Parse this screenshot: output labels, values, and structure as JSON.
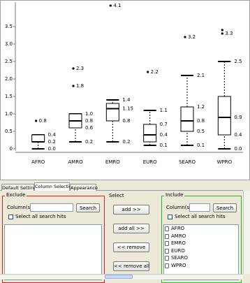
{
  "chart_data": {
    "type": "box",
    "categories": [
      "AFRO",
      "AMRO",
      "EMRO",
      "EURO",
      "SEARO",
      "WPRO"
    ],
    "ylim": [
      -0.05,
      4.2
    ],
    "yticks": [
      0,
      0.5,
      {
        "value": 1,
        "label": "1.0"
      },
      1.5,
      {
        "value": 2,
        "label": "2.0"
      },
      2.5,
      {
        "value": 3,
        "label": "3.0"
      },
      3.5
    ],
    "color": "#000000",
    "boxes": [
      {
        "min": 0,
        "q1": 0.2,
        "median": 0.2,
        "q3": 0.4,
        "max": 0.4,
        "outliers": [
          0.8
        ],
        "value_labels": [
          {
            "value": 0.8,
            "label": "0.8"
          },
          {
            "value": 0.4,
            "label": "0.4"
          },
          {
            "value": 0.2,
            "label": "0.2"
          },
          {
            "value": 0,
            "label": "0.0"
          }
        ]
      },
      {
        "min": 0.2,
        "q1": 0.6,
        "median": 0.8,
        "q3": 1,
        "max": 1,
        "outliers": [
          1.8,
          2.3
        ],
        "value_labels": [
          {
            "value": 2.3,
            "label": "2.3"
          },
          {
            "value": 1.8,
            "label": "1.8"
          },
          {
            "value": 1,
            "label": "1.0"
          },
          {
            "value": 0.8,
            "label": "0.8"
          },
          {
            "value": 0.6,
            "label": "0.6"
          },
          {
            "value": 0.2,
            "label": "0.2"
          }
        ]
      },
      {
        "min": 0.2,
        "q1": 0.8,
        "median": 1.15,
        "q3": 1.3,
        "max": 1.4,
        "outliers": [
          4.1
        ],
        "value_labels": [
          {
            "value": 4.1,
            "label": "4.1"
          },
          {
            "value": 1.4,
            "label": "1.4"
          },
          {
            "value": 1.15,
            "label": "1.15"
          },
          {
            "value": 0.8,
            "label": "0.8"
          },
          {
            "value": 0.2,
            "label": "0.2"
          }
        ]
      },
      {
        "min": 0.1,
        "q1": 0.2,
        "median": 0.4,
        "q3": 0.7,
        "max": 1.1,
        "outliers": [
          2.2
        ],
        "value_labels": [
          {
            "value": 2.2,
            "label": "2.2"
          },
          {
            "value": 1.1,
            "label": "1.1"
          },
          {
            "value": 0.7,
            "label": "0.7"
          },
          {
            "value": 0.4,
            "label": "0.4"
          },
          {
            "value": 0.1,
            "label": "0.1"
          }
        ]
      },
      {
        "min": 0.1,
        "q1": 0.5,
        "median": 0.8,
        "q3": 1.2,
        "max": 2.1,
        "outliers": [
          3.2
        ],
        "value_labels": [
          {
            "value": 3.2,
            "label": "3.2"
          },
          {
            "value": 2.1,
            "label": "2.1"
          },
          {
            "value": 1.2,
            "label": "1.2"
          },
          {
            "value": 0.8,
            "label": "0.8"
          },
          {
            "value": 0.5,
            "label": "0.5"
          },
          {
            "value": 0.1,
            "label": "0.1"
          }
        ]
      },
      {
        "min": 0,
        "q1": 0.4,
        "median": 0.9,
        "q3": 1.5,
        "max": 2.5,
        "outliers": [
          3.3,
          3.4
        ],
        "value_labels": [
          {
            "value": 3.3,
            "label": "3.3"
          },
          {
            "value": 2.5,
            "label": "2.5"
          },
          {
            "value": 0.9,
            "label": "0.9"
          },
          {
            "value": 0.4,
            "label": "0.4"
          },
          {
            "value": 0,
            "label": "0.0"
          }
        ]
      }
    ]
  },
  "tabs": [
    "Default Settings",
    "Column Selection",
    "Appearance"
  ],
  "column_selection": {
    "exclude": {
      "title": "Exclude",
      "column_label": "Column(s):",
      "search_button": "Search",
      "select_all": "Select all search hits",
      "items": []
    },
    "select": {
      "title": "Select",
      "buttons": [
        "add >>",
        "add all >>",
        "<< remove",
        "<< remove all"
      ]
    },
    "include": {
      "title": "Include",
      "column_label": "Column(s):",
      "search_button": "Search",
      "select_all": "Select all search hits",
      "items": [
        "AFRO",
        "AMRO",
        "EMRO",
        "EURO",
        "SEARO",
        "WPRO"
      ]
    }
  }
}
